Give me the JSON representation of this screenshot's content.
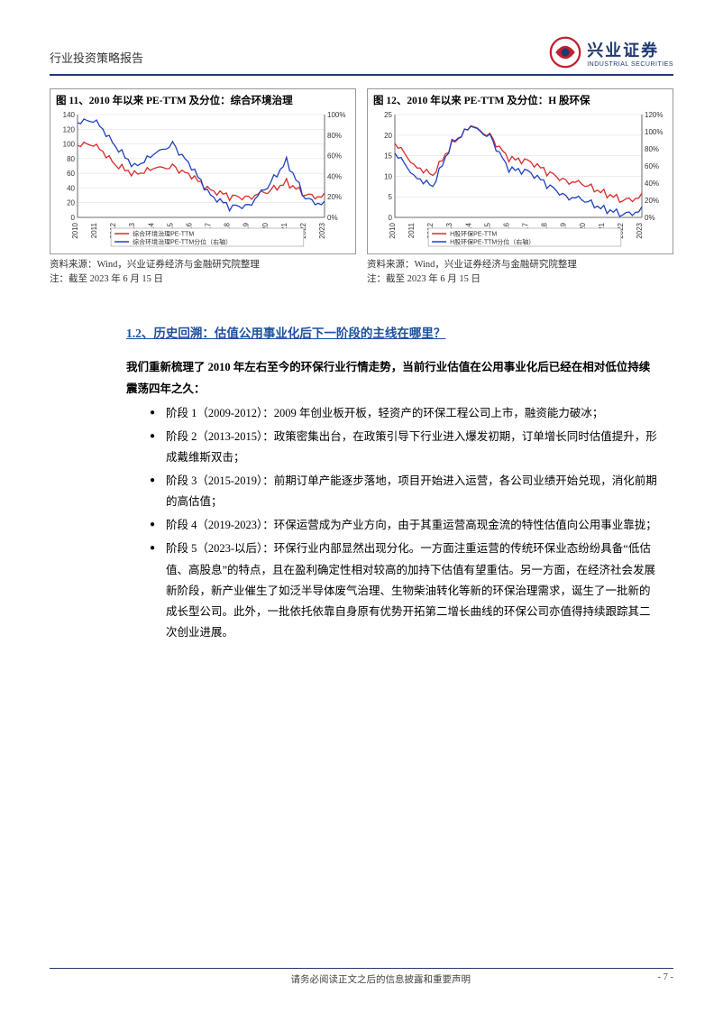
{
  "header": {
    "title": "行业投资策略报告"
  },
  "logo": {
    "cn": "兴业证券",
    "en": "INDUSTRIAL SECURITIES"
  },
  "chart_left": {
    "title": "图 11、2010 年以来 PE-TTM 及分位：综合环境治理",
    "type": "line-dual-axis",
    "y1_lim": [
      0,
      140
    ],
    "y1_ticks": [
      0,
      20,
      40,
      60,
      80,
      100,
      120,
      140
    ],
    "y2_ticks": [
      "0%",
      "20%",
      "40%",
      "60%",
      "80%",
      "100%"
    ],
    "x_labels": [
      "2010",
      "2011",
      "2012",
      "2013",
      "2014",
      "2015",
      "2016",
      "2017",
      "2018",
      "2019",
      "2020",
      "2021",
      "2022",
      "2023"
    ],
    "series": [
      {
        "name": "综合环境治理PE-TTM",
        "color": "#d92b2b",
        "axis": "y1",
        "points": [
          98,
          100,
          70,
          60,
          65,
          70,
          55,
          38,
          28,
          28,
          35,
          48,
          30,
          28
        ]
      },
      {
        "name": "综合环境治理PE-TTM分位（右轴）",
        "color": "#2040c0",
        "axis": "y2",
        "points": [
          92,
          95,
          68,
          50,
          60,
          72,
          48,
          22,
          10,
          12,
          30,
          55,
          18,
          12
        ]
      }
    ],
    "background_color": "#ffffff",
    "grid_color": "#e0e0e0",
    "source": "资料来源：Wind，兴业证券经济与金融研究院整理",
    "note": "注：截至 2023 年 6 月 15 日"
  },
  "chart_right": {
    "title": "图 12、2010 年以来 PE-TTM 及分位：H 股环保",
    "type": "line-dual-axis",
    "y1_lim": [
      0,
      25
    ],
    "y1_ticks": [
      0,
      5,
      10,
      15,
      20,
      25
    ],
    "y2_ticks": [
      "0%",
      "20%",
      "40%",
      "60%",
      "80%",
      "100%",
      "120%"
    ],
    "x_labels": [
      "2010",
      "2011",
      "2012",
      "2013",
      "2014",
      "2015",
      "2016",
      "2017",
      "2018",
      "2019",
      "2020",
      "2021",
      "2022",
      "2023"
    ],
    "series": [
      {
        "name": "H股环保PE-TTM",
        "color": "#d92b2b",
        "axis": "y1",
        "points": [
          18,
          13,
          10,
          18,
          22,
          20,
          14,
          14,
          11,
          9,
          8,
          6,
          4,
          5
        ]
      },
      {
        "name": "H股环保PE-TTM分位（右轴）",
        "color": "#2040c0",
        "axis": "y2",
        "points": [
          75,
          50,
          35,
          88,
          105,
          95,
          55,
          55,
          38,
          25,
          20,
          10,
          3,
          8
        ]
      }
    ],
    "background_color": "#ffffff",
    "grid_color": "#e0e0e0",
    "source": "资料来源：Wind，兴业证券经济与金融研究院整理",
    "note": "注：截至 2023 年 6 月 15 日"
  },
  "section": {
    "heading": "1.2、历史回溯：估值公用事业化后下一阶段的主线在哪里？",
    "intro": "我们重新梳理了 2010 年左右至今的环保行业行情走势，当前行业估值在公用事业化后已经在相对低位持续震荡四年之久：",
    "bullets": [
      "阶段 1（2009-2012）：2009 年创业板开板，轻资产的环保工程公司上市，融资能力破冰；",
      "阶段 2（2013-2015）：政策密集出台，在政策引导下行业进入爆发初期，订单增长同时估值提升，形成戴维斯双击；",
      "阶段 3（2015-2019）：前期订单产能逐步落地，项目开始进入运营，各公司业绩开始兑现，消化前期的高估值；",
      "阶段 4（2019-2023）：环保运营成为产业方向，由于其重运营高现金流的特性估值向公用事业靠拢；",
      "阶段 5（2023-以后）：环保行业内部显然出现分化。一方面注重运营的传统环保业态纷纷具备“低估值、高股息”的特点，且在盈利确定性相对较高的加持下估值有望重估。另一方面，在经济社会发展新阶段，新产业催生了如泛半导体废气治理、生物柴油转化等新的环保治理需求，诞生了一批新的成长型公司。此外，一批依托依靠自身原有优势开拓第二增长曲线的环保公司亦值得持续跟踪其二次创业进展。"
    ]
  },
  "footer": {
    "disclaimer": "请务必阅读正文之后的信息披露和重要声明",
    "page": "- 7 -"
  }
}
